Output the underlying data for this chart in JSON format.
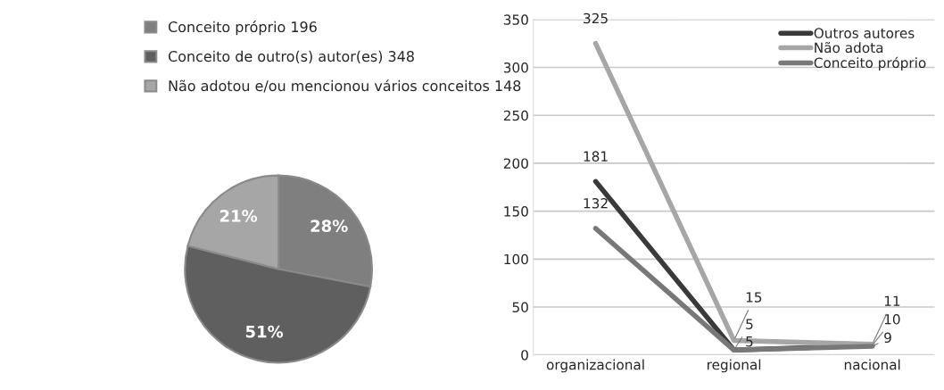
{
  "chart_data": [
    {
      "type": "pie",
      "categories": [
        "Conceito próprio 196",
        "Conceito de outro(s) autor(es) 348",
        "Não adotou e/ou mencionou vários conceitos 148"
      ],
      "values": [
        28,
        51,
        21
      ],
      "value_labels": [
        "28%",
        "51%",
        "21%"
      ],
      "colors": [
        "#7f7f7f",
        "#5f5f5f",
        "#a6a6a6"
      ],
      "legend": "top"
    },
    {
      "type": "line",
      "categories": [
        "organizacional",
        "regional",
        "nacional"
      ],
      "series": [
        {
          "name": "Outros autores",
          "color": "#3a3a3a",
          "values": [
            181,
            5,
            10
          ]
        },
        {
          "name": "Não adota",
          "color": "#a6a6a6",
          "values": [
            325,
            15,
            11
          ]
        },
        {
          "name": "Conceito próprio",
          "color": "#787878",
          "values": [
            132,
            5,
            9
          ]
        }
      ],
      "ylim": [
        0,
        350
      ],
      "yticks": [
        0,
        50,
        100,
        150,
        200,
        250,
        300,
        350
      ],
      "grid": "y",
      "legend": "top right",
      "data_labels": true,
      "marker": "none",
      "line_style": "solid"
    }
  ]
}
